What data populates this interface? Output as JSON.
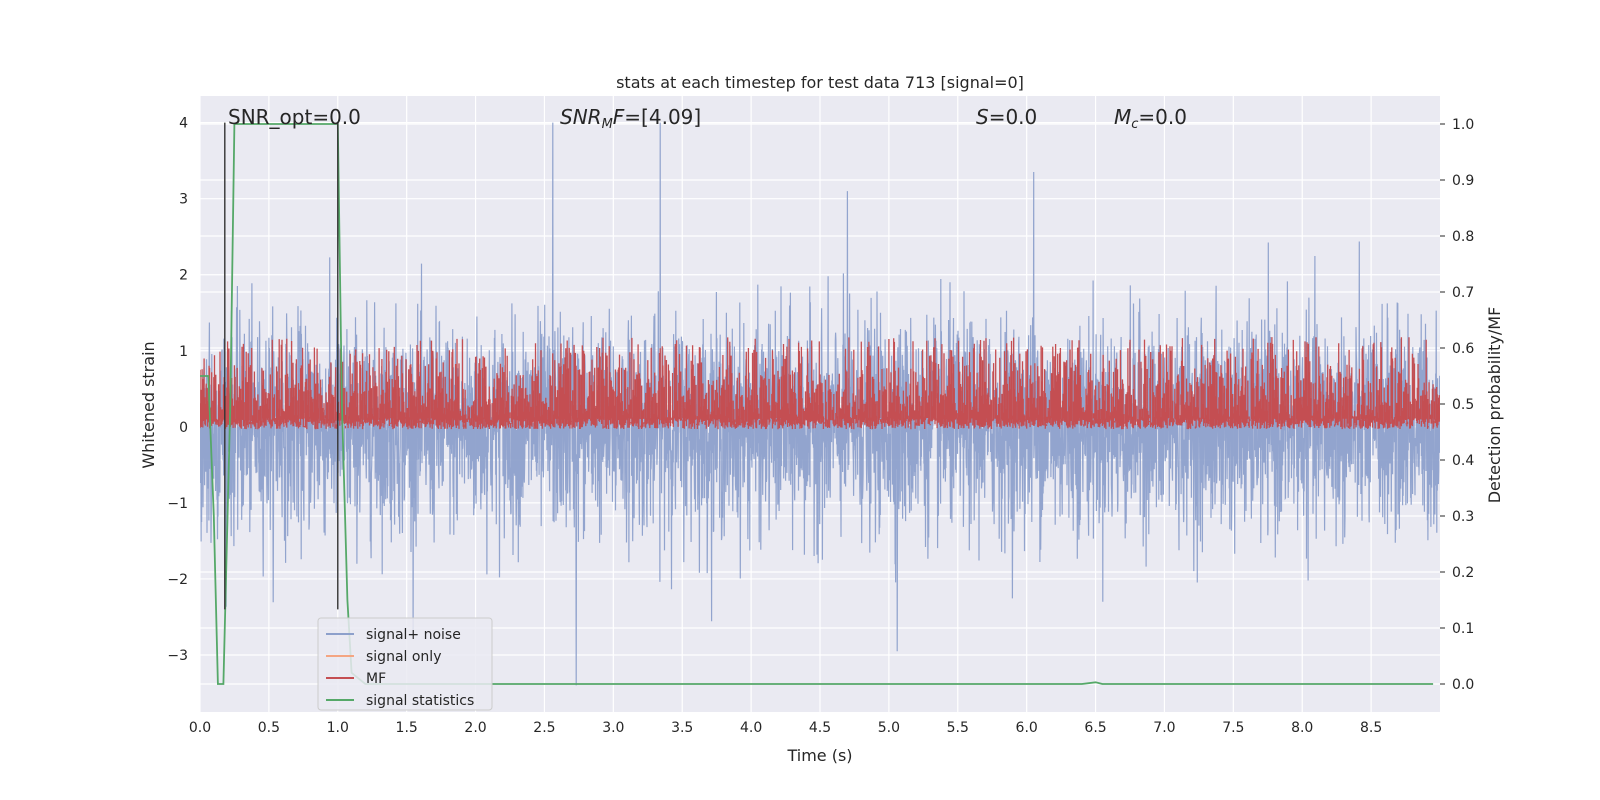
{
  "chart_data": {
    "type": "line",
    "title": "stats at each timestep for test data 713 [signal=0]",
    "xlabel": "Time (s)",
    "ylabel": "Whitened strain",
    "ylabel_right": "Detection probability/MF",
    "xlim": [
      0.0,
      9.0
    ],
    "ylim_left": [
      -3.75,
      4.35
    ],
    "ylim_right": [
      -0.05,
      1.05
    ],
    "x_ticks": [
      0.0,
      0.5,
      1.0,
      1.5,
      2.0,
      2.5,
      3.0,
      3.5,
      4.0,
      4.5,
      5.0,
      5.5,
      6.0,
      6.5,
      7.0,
      7.5,
      8.0,
      8.5
    ],
    "y_left_ticks": [
      -3,
      -2,
      -1,
      0,
      1,
      2,
      3,
      4
    ],
    "y_right_ticks": [
      0.0,
      0.1,
      0.2,
      0.3,
      0.4,
      0.5,
      0.6,
      0.7,
      0.8,
      0.9,
      1.0
    ],
    "grid": true,
    "legend_position": "lower-left",
    "annotations": {
      "snr_opt": "SNR_opt=0.0",
      "snr_mf_prefix": "SNR",
      "snr_mf_sub": "M",
      "snr_mf_suffix": "F=[4.09]",
      "s_label": "S",
      "s_value": "=0.0",
      "mc_label": "M",
      "mc_sub": "c",
      "mc_value": "=0.0"
    },
    "vertical_markers": [
      0.18,
      1.0
    ],
    "series": [
      {
        "name": "signal+ noise",
        "color": "#8da0cb",
        "axis": "left",
        "kind": "noise",
        "sample_rate": 512,
        "std": 0.68,
        "peaks": [
          {
            "x": 2.56,
            "y": 4.0
          },
          {
            "x": 3.34,
            "y": 4.0
          },
          {
            "x": 6.05,
            "y": 3.35
          },
          {
            "x": 2.73,
            "y": -3.4
          },
          {
            "x": 4.7,
            "y": 3.1
          },
          {
            "x": 5.06,
            "y": -2.95
          }
        ]
      },
      {
        "name": "signal only",
        "color": "#f4a582",
        "axis": "left",
        "values": []
      },
      {
        "name": "MF",
        "color": "#c44e52",
        "axis": "right",
        "kind": "band",
        "center": 0.5,
        "low": 0.455,
        "high": 0.62,
        "peaks": [
          {
            "x": 2.9,
            "y": 0.6
          },
          {
            "x": 0.7,
            "y": 0.58
          }
        ]
      },
      {
        "name": "signal statistics",
        "color": "#55a868",
        "axis": "right",
        "x": [
          0.0,
          0.06,
          0.1,
          0.13,
          0.17,
          0.22,
          0.25,
          0.28,
          1.0,
          1.03,
          1.07,
          1.1,
          1.2,
          6.4,
          6.5,
          6.55,
          8.95
        ],
        "values": [
          0.55,
          0.55,
          0.3,
          0.0,
          0.0,
          0.5,
          1.0,
          1.0,
          1.0,
          0.5,
          0.15,
          0.02,
          0.0,
          0.0,
          0.003,
          0.0,
          0.0
        ]
      }
    ]
  }
}
